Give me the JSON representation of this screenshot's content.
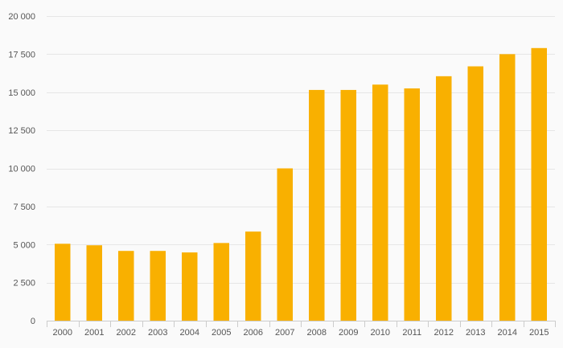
{
  "chart_data": {
    "type": "bar",
    "categories": [
      "2000",
      "2001",
      "2002",
      "2003",
      "2004",
      "2005",
      "2006",
      "2007",
      "2008",
      "2009",
      "2010",
      "2011",
      "2012",
      "2013",
      "2014",
      "2015"
    ],
    "series": [
      {
        "values": [
          5050,
          4950,
          4580,
          4580,
          4480,
          5100,
          5850,
          10000,
          15150,
          15150,
          15500,
          15250,
          16050,
          16700,
          17500,
          17900
        ]
      }
    ],
    "title": "",
    "xlabel": "",
    "ylabel": "",
    "ylim": [
      0,
      20000
    ],
    "yticks": [
      0,
      2500,
      5000,
      7500,
      10000,
      12500,
      15000,
      17500,
      20000
    ],
    "ytick_labels": [
      "0",
      "2 500",
      "5 000",
      "7 500",
      "10 000",
      "12 500",
      "15 000",
      "17 500",
      "20 000"
    ],
    "grid": true,
    "legend": "none",
    "colors": {
      "bar": "#f9b000",
      "grid": "#e6e6e6",
      "axis": "#cccccc",
      "text": "#555555",
      "background": "#fafafa"
    }
  }
}
